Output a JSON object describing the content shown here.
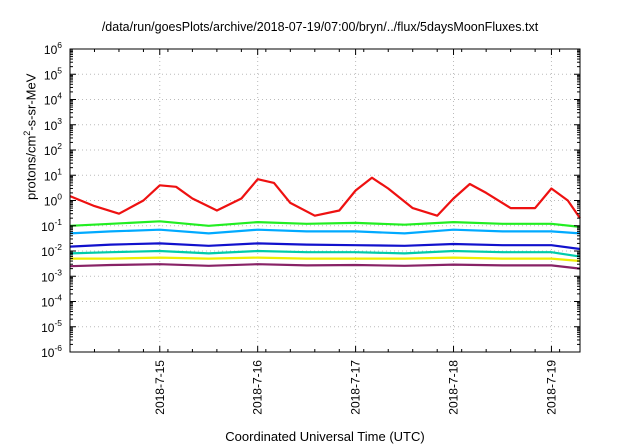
{
  "chart_data": {
    "type": "line",
    "title": "/data/run/goesPlots/archive/2018-07-19/07:00/bryn/../flux/5daysMoonFluxes.txt",
    "xlabel": "Coordinated Universal Time (UTC)",
    "ylabel_parts": [
      "protons/cm",
      "2",
      "-s-sr-MeV"
    ],
    "yscale": "log",
    "ylim": [
      1e-06,
      1000000.0
    ],
    "y_tick_base": "10",
    "y_tick_exponents": [
      "-6",
      "-5",
      "-4",
      "-3",
      "-2",
      "-1",
      "0",
      "1",
      "2",
      "3",
      "4",
      "5",
      "6"
    ],
    "xlim": [
      "2018-07-14T02:00",
      "2018-07-19T07:00"
    ],
    "x_ticks": [
      "2018-7-15",
      "2018-7-16",
      "2018-7-17",
      "2018-7-18",
      "2018-7-19"
    ],
    "grid": true,
    "series": [
      {
        "color": "#ee1111",
        "x": [
          "2018-07-14T02:00",
          "2018-07-14T08:00",
          "2018-07-14T14:00",
          "2018-07-14T20:00",
          "2018-07-15T00:00",
          "2018-07-15T04:00",
          "2018-07-15T08:00",
          "2018-07-15T14:00",
          "2018-07-15T20:00",
          "2018-07-16T00:00",
          "2018-07-16T04:00",
          "2018-07-16T08:00",
          "2018-07-16T14:00",
          "2018-07-16T20:00",
          "2018-07-17T00:00",
          "2018-07-17T04:00",
          "2018-07-17T08:00",
          "2018-07-17T14:00",
          "2018-07-17T20:00",
          "2018-07-18T00:00",
          "2018-07-18T04:00",
          "2018-07-18T08:00",
          "2018-07-18T14:00",
          "2018-07-18T20:00",
          "2018-07-19T00:00",
          "2018-07-19T04:00",
          "2018-07-19T07:00"
        ],
        "values": [
          1.5,
          0.6,
          0.3,
          1.0,
          4.0,
          3.5,
          1.2,
          0.4,
          1.2,
          7.0,
          5.0,
          0.8,
          0.25,
          0.4,
          2.5,
          8.0,
          3.0,
          0.5,
          0.25,
          1.2,
          4.5,
          2.0,
          0.5,
          0.5,
          3.0,
          1.0,
          0.2
        ]
      },
      {
        "color": "#22ee22",
        "x": [
          "2018-07-14T02:00",
          "2018-07-14T12:00",
          "2018-07-15T00:00",
          "2018-07-15T12:00",
          "2018-07-16T00:00",
          "2018-07-16T12:00",
          "2018-07-17T00:00",
          "2018-07-17T12:00",
          "2018-07-18T00:00",
          "2018-07-18T12:00",
          "2018-07-19T00:00",
          "2018-07-19T07:00"
        ],
        "values": [
          0.1,
          0.12,
          0.15,
          0.1,
          0.14,
          0.12,
          0.13,
          0.11,
          0.14,
          0.12,
          0.12,
          0.09
        ]
      },
      {
        "color": "#00aaff",
        "x": [
          "2018-07-14T02:00",
          "2018-07-14T12:00",
          "2018-07-15T00:00",
          "2018-07-15T12:00",
          "2018-07-16T00:00",
          "2018-07-16T12:00",
          "2018-07-17T00:00",
          "2018-07-17T12:00",
          "2018-07-18T00:00",
          "2018-07-18T12:00",
          "2018-07-19T00:00",
          "2018-07-19T07:00"
        ],
        "values": [
          0.05,
          0.06,
          0.07,
          0.05,
          0.07,
          0.06,
          0.06,
          0.05,
          0.07,
          0.06,
          0.06,
          0.05
        ]
      },
      {
        "color": "#1111cc",
        "x": [
          "2018-07-14T02:00",
          "2018-07-14T12:00",
          "2018-07-15T00:00",
          "2018-07-15T12:00",
          "2018-07-16T00:00",
          "2018-07-16T12:00",
          "2018-07-17T00:00",
          "2018-07-17T12:00",
          "2018-07-18T00:00",
          "2018-07-18T12:00",
          "2018-07-19T00:00",
          "2018-07-19T07:00"
        ],
        "values": [
          0.015,
          0.018,
          0.02,
          0.016,
          0.02,
          0.018,
          0.017,
          0.016,
          0.019,
          0.017,
          0.017,
          0.012
        ]
      },
      {
        "color": "#00ccaa",
        "x": [
          "2018-07-14T02:00",
          "2018-07-14T12:00",
          "2018-07-15T00:00",
          "2018-07-15T12:00",
          "2018-07-16T00:00",
          "2018-07-16T12:00",
          "2018-07-17T00:00",
          "2018-07-17T12:00",
          "2018-07-18T00:00",
          "2018-07-18T12:00",
          "2018-07-19T00:00",
          "2018-07-19T07:00"
        ],
        "values": [
          0.008,
          0.009,
          0.01,
          0.008,
          0.01,
          0.009,
          0.009,
          0.008,
          0.01,
          0.009,
          0.009,
          0.006
        ]
      },
      {
        "color": "#eeee00",
        "x": [
          "2018-07-14T02:00",
          "2018-07-14T12:00",
          "2018-07-15T00:00",
          "2018-07-15T12:00",
          "2018-07-16T00:00",
          "2018-07-16T12:00",
          "2018-07-17T00:00",
          "2018-07-17T12:00",
          "2018-07-18T00:00",
          "2018-07-18T12:00",
          "2018-07-19T00:00",
          "2018-07-19T07:00"
        ],
        "values": [
          0.005,
          0.005,
          0.0055,
          0.005,
          0.0055,
          0.005,
          0.005,
          0.005,
          0.0055,
          0.005,
          0.005,
          0.004
        ]
      },
      {
        "color": "#882266",
        "x": [
          "2018-07-14T02:00",
          "2018-07-14T12:00",
          "2018-07-15T00:00",
          "2018-07-15T12:00",
          "2018-07-16T00:00",
          "2018-07-16T12:00",
          "2018-07-17T00:00",
          "2018-07-17T12:00",
          "2018-07-18T00:00",
          "2018-07-18T12:00",
          "2018-07-19T00:00",
          "2018-07-19T07:00"
        ],
        "values": [
          0.0025,
          0.0028,
          0.003,
          0.0026,
          0.003,
          0.0027,
          0.0028,
          0.0026,
          0.0029,
          0.0027,
          0.0027,
          0.002
        ]
      }
    ]
  }
}
